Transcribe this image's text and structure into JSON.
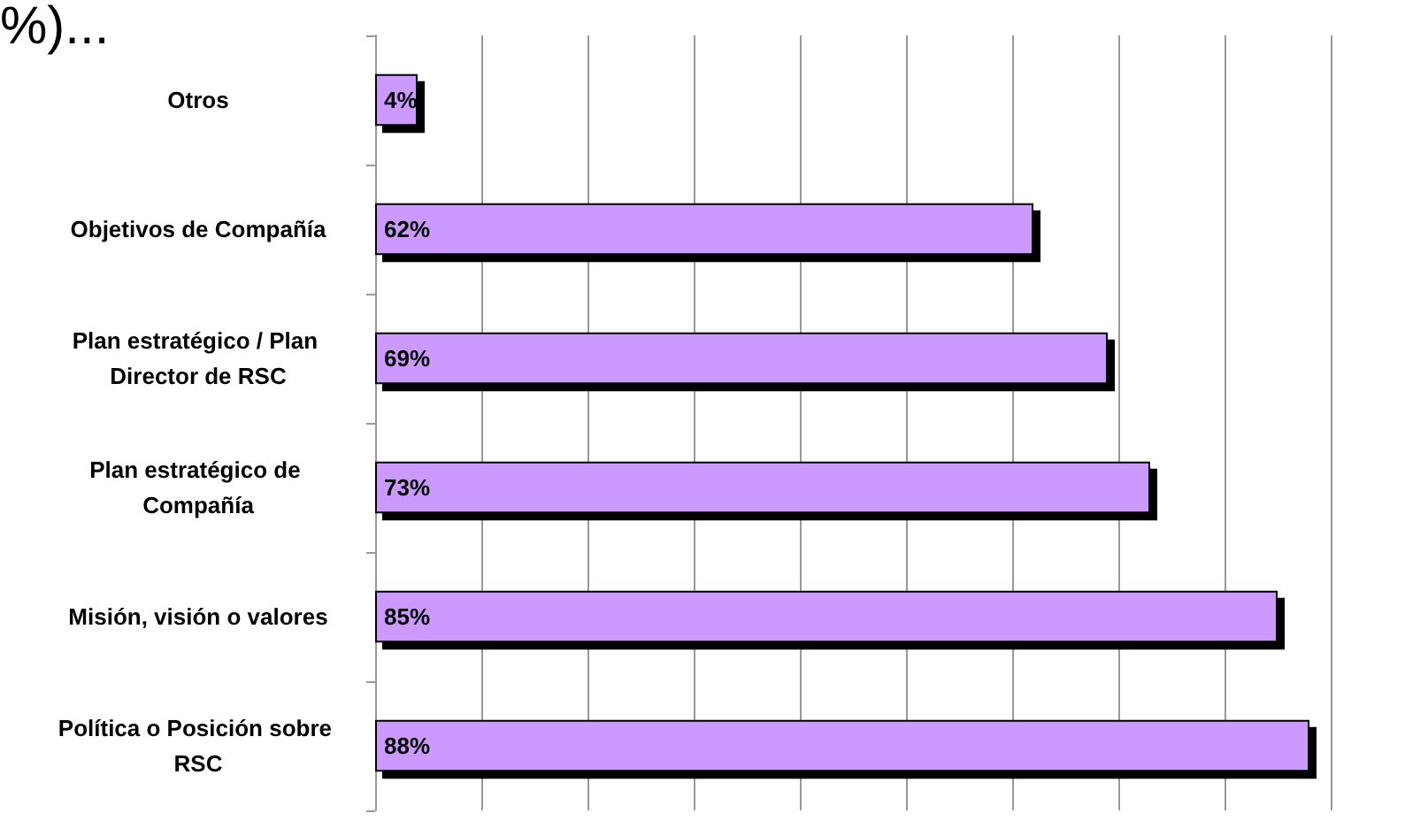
{
  "chart_data": {
    "type": "bar",
    "orientation": "horizontal",
    "title": "%)...",
    "categories": [
      "Otros",
      "Objetivos de Compañía",
      "Plan estratégico / Plan Director de RSC",
      "Plan estratégico de Compañía",
      "Misión, visión o valores",
      "Política o Posición sobre RSC"
    ],
    "values": [
      4,
      62,
      69,
      73,
      85,
      88
    ],
    "value_labels": [
      "4%",
      "62%",
      "69%",
      "73%",
      "85%",
      "88%"
    ],
    "color": "#cc99ff",
    "xlim": [
      0,
      90
    ],
    "xticks": [
      {
        "value": 0,
        "label": null
      },
      {
        "value": 10,
        "label": null
      },
      {
        "value": 20,
        "label": null
      },
      {
        "value": 30,
        "label": null
      },
      {
        "value": 40,
        "label": null
      },
      {
        "value": 50,
        "label": null
      },
      {
        "value": 60,
        "label": null
      },
      {
        "value": 70,
        "label": null
      },
      {
        "value": 80,
        "label": null
      },
      {
        "value": 90,
        "label": null
      }
    ],
    "grid": "x",
    "tick_labels": "y"
  }
}
